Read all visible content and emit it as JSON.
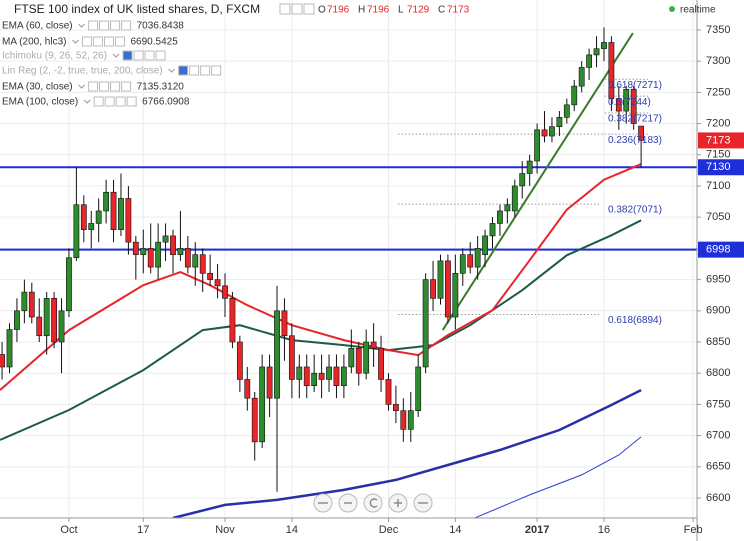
{
  "chart_data": {
    "type": "candlestick",
    "title": "FTSE 100 index of UK listed shares, D, FXCM",
    "ohlc_letters": [
      "O",
      "H",
      "L",
      "C"
    ],
    "status": "realtime",
    "xlim": [
      -0.28,
      93.52
    ],
    "ylim": [
      6568,
      7398
    ],
    "xticks": [
      {
        "value": 9,
        "label": "Oct"
      },
      {
        "value": 19,
        "label": "17"
      },
      {
        "value": 30,
        "label": "Nov"
      },
      {
        "value": 39,
        "label": "14"
      },
      {
        "value": 52,
        "label": "Dec"
      },
      {
        "value": 61,
        "label": "14"
      },
      {
        "value": 72,
        "label": "2017"
      },
      {
        "value": 81,
        "label": "16"
      },
      {
        "value": 93,
        "label": "Feb"
      }
    ],
    "yticks": [
      6600,
      6650,
      6700,
      6750,
      6800,
      6850,
      6900,
      6950,
      7000,
      7050,
      7100,
      7150,
      7200,
      7250,
      7300,
      7350
    ],
    "grid": true,
    "up_color": "#2e8b2e",
    "down_color": "#e8252a",
    "open": [
      6830,
      6810,
      6870,
      6900,
      6930,
      6890,
      6860,
      6920,
      6850,
      6900,
      6985,
      7070,
      7030,
      7040,
      7060,
      7090,
      7030,
      7080,
      7010,
      6990,
      7000,
      6970,
      7010,
      7020,
      6990,
      7000,
      6970,
      6990,
      6960,
      6950,
      6940,
      6920,
      6850,
      6790,
      6760,
      6690,
      6810,
      6760,
      6900,
      6860,
      6790,
      6810,
      6780,
      6800,
      6790,
      6810,
      6780,
      6810,
      6840,
      6800,
      6850,
      6840,
      6790,
      6750,
      6740,
      6710,
      6740,
      6810,
      6950,
      6920,
      6980,
      6890,
      6960,
      6990,
      6970,
      6990,
      7020,
      7040,
      7060,
      7060,
      7100,
      7120,
      7140,
      7190,
      7180,
      7195,
      7210,
      7230,
      7260,
      7290,
      7310,
      7320,
      7330,
      7240,
      7220,
      7255,
      7196
    ],
    "high": [
      6850,
      6880,
      6920,
      6950,
      6945,
      6920,
      6930,
      6930,
      6920,
      7000,
      7130,
      7085,
      7060,
      7080,
      7110,
      7110,
      7120,
      7100,
      7020,
      7030,
      7040,
      7040,
      7040,
      7030,
      7060,
      7020,
      7010,
      7000,
      6990,
      6975,
      6960,
      6930,
      6860,
      6810,
      6770,
      6830,
      6830,
      6940,
      6920,
      6880,
      6830,
      6830,
      6830,
      6830,
      6830,
      6830,
      6830,
      6870,
      6850,
      6870,
      6880,
      6860,
      6800,
      6780,
      6760,
      6770,
      6830,
      6960,
      6980,
      6990,
      6990,
      6990,
      7000,
      7010,
      7020,
      7030,
      7050,
      7070,
      7080,
      7110,
      7140,
      7150,
      7200,
      7220,
      7210,
      7220,
      7240,
      7270,
      7300,
      7320,
      7340,
      7354,
      7340,
      7260,
      7260,
      7260,
      7196
    ],
    "low": [
      6790,
      6800,
      6850,
      6880,
      6880,
      6850,
      6830,
      6840,
      6800,
      6890,
      6980,
      7010,
      7000,
      7010,
      7040,
      7010,
      7020,
      6990,
      6950,
      6960,
      6960,
      6950,
      6980,
      6960,
      6980,
      6960,
      6940,
      6930,
      6940,
      6920,
      6890,
      6840,
      6770,
      6740,
      6660,
      6680,
      6730,
      6610,
      6820,
      6760,
      6760,
      6760,
      6770,
      6760,
      6770,
      6760,
      6760,
      6800,
      6780,
      6790,
      6810,
      6770,
      6740,
      6720,
      6690,
      6690,
      6730,
      6800,
      6900,
      6910,
      6880,
      6870,
      6940,
      6960,
      6950,
      6970,
      7000,
      7020,
      7040,
      7050,
      7080,
      7100,
      7120,
      7170,
      7170,
      7180,
      7200,
      7220,
      7250,
      7270,
      7290,
      7300,
      7220,
      7190,
      7200,
      7190,
      7129
    ],
    "close": [
      6810,
      6870,
      6900,
      6930,
      6890,
      6860,
      6920,
      6850,
      6900,
      6985,
      7070,
      7030,
      7040,
      7060,
      7090,
      7030,
      7080,
      7010,
      6990,
      7000,
      6970,
      7010,
      7020,
      6990,
      7000,
      6970,
      6990,
      6960,
      6950,
      6940,
      6920,
      6850,
      6790,
      6760,
      6690,
      6810,
      6760,
      6900,
      6860,
      6790,
      6810,
      6780,
      6800,
      6790,
      6810,
      6780,
      6810,
      6840,
      6800,
      6850,
      6840,
      6790,
      6750,
      6740,
      6710,
      6740,
      6810,
      6950,
      6920,
      6980,
      6890,
      6960,
      6990,
      6970,
      7000,
      7020,
      7040,
      7060,
      7070,
      7100,
      7120,
      7140,
      7190,
      7180,
      7195,
      7210,
      7230,
      7260,
      7290,
      7310,
      7320,
      7330,
      7240,
      7220,
      7255,
      7200,
      7173
    ],
    "indicators": [
      {
        "name": "EMA (60, close)",
        "legend_value": "7036.8438",
        "color": "#1d5a4c",
        "width": 2,
        "x": [
          -0.28,
          9,
          19,
          27,
          32,
          39,
          46,
          52,
          58,
          63,
          70,
          76,
          82,
          86
        ],
        "values": [
          6693,
          6741,
          6805,
          6869,
          6877,
          6853,
          6845,
          6837,
          6845,
          6877,
          6933,
          6989,
          7021,
          7045
        ]
      },
      {
        "name": "MA (200, hlc3)",
        "legend_value": "6690.5425",
        "color": "#2a3fd0",
        "width": 1,
        "x": [
          63,
          71,
          78,
          83,
          86
        ],
        "values": [
          6565,
          6605,
          6637,
          6669,
          6698
        ]
      },
      {
        "name": "Ichimoku (9, 26, 52, 26)"
      },
      {
        "name": "Lin Reg (2, -2, true, true, 200, close)"
      },
      {
        "name": "EMA (30, close)",
        "legend_value": "7135.3120",
        "color": "#e8252a",
        "width": 2,
        "x": [
          -0.28,
          9,
          19,
          24,
          28,
          33,
          39,
          46,
          52,
          56,
          60,
          66,
          71,
          76,
          81,
          86
        ],
        "values": [
          6773,
          6869,
          6941,
          6962,
          6941,
          6909,
          6877,
          6853,
          6837,
          6829,
          6861,
          6901,
          6981,
          7062,
          7110,
          7135
        ]
      },
      {
        "name": "EMA (100, close)",
        "legend_value": "6766.0908",
        "color": "#2730a8",
        "width": 2.5,
        "x": [
          23,
          30,
          37,
          46,
          53,
          60,
          67,
          75,
          82,
          86
        ],
        "values": [
          6568,
          6589,
          6597,
          6613,
          6629,
          6653,
          6677,
          6709,
          6749,
          6773
        ]
      }
    ],
    "hlines": [
      7130,
      6998
    ],
    "hline_color": "#1f2fd8",
    "trendline": {
      "color": "#3a7a2a",
      "x": [
        59.3,
        84.9
      ],
      "values": [
        6869,
        7345
      ]
    },
    "fib_levels": [
      {
        "label": "0.618(7271)",
        "value": 7271,
        "x": [
          81.1,
          87.2
        ]
      },
      {
        "label": "0.5(7244)",
        "value": 7244,
        "x": [
          81.1,
          87.2
        ]
      },
      {
        "label": "0.382(7217)",
        "value": 7217,
        "x": [
          81.1,
          87.2
        ]
      },
      {
        "label": "0.236(7183)",
        "value": 7183,
        "x": [
          53.3,
          87.2
        ]
      },
      {
        "label": "0.382(7071)",
        "value": 7071,
        "x": [
          53.3,
          80.5
        ]
      },
      {
        "label": "0.618(6894)",
        "value": 6894,
        "x": [
          53.3,
          80.5
        ]
      }
    ]
  }
}
